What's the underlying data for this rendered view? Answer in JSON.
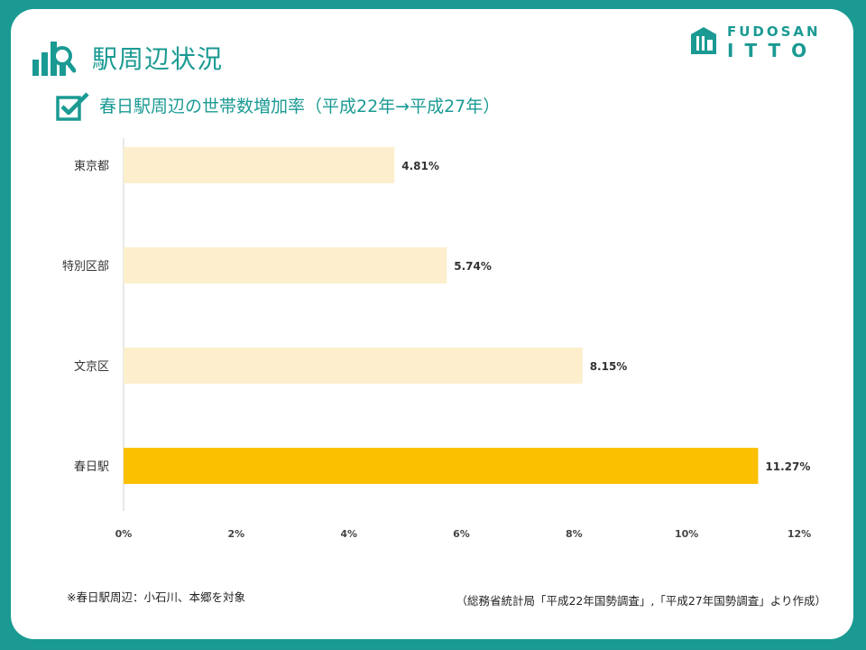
{
  "page": {
    "title": "駅周辺状況",
    "brand_top": "FUDOSAN",
    "brand_bottom": "ITTO"
  },
  "footnotes": {
    "left": "※春日駅周辺：小石川、本郷を対象",
    "right": "（総務省統計局「平成22年国勢調査」,「平成27年国勢調査」より作成）"
  },
  "colors": {
    "teal": "#1a9a93",
    "bar_light": "#fdefcd",
    "bar_highlight": "#fbc000"
  },
  "chart_data": {
    "type": "bar",
    "orientation": "horizontal",
    "title": "春日駅周辺の世帯数増加率（平成22年→平成27年）",
    "categories": [
      "東京都",
      "特別区部",
      "文京区",
      "春日駅"
    ],
    "values": [
      4.81,
      5.74,
      8.15,
      11.27
    ],
    "value_labels": [
      "4.81%",
      "5.74%",
      "8.15%",
      "11.27%"
    ],
    "highlight_index": 3,
    "xlim": [
      0,
      12
    ],
    "xticks": [
      0,
      2,
      4,
      6,
      8,
      10,
      12
    ],
    "xtick_labels": [
      "0%",
      "2%",
      "4%",
      "6%",
      "8%",
      "10%",
      "12%"
    ],
    "grid": false
  }
}
